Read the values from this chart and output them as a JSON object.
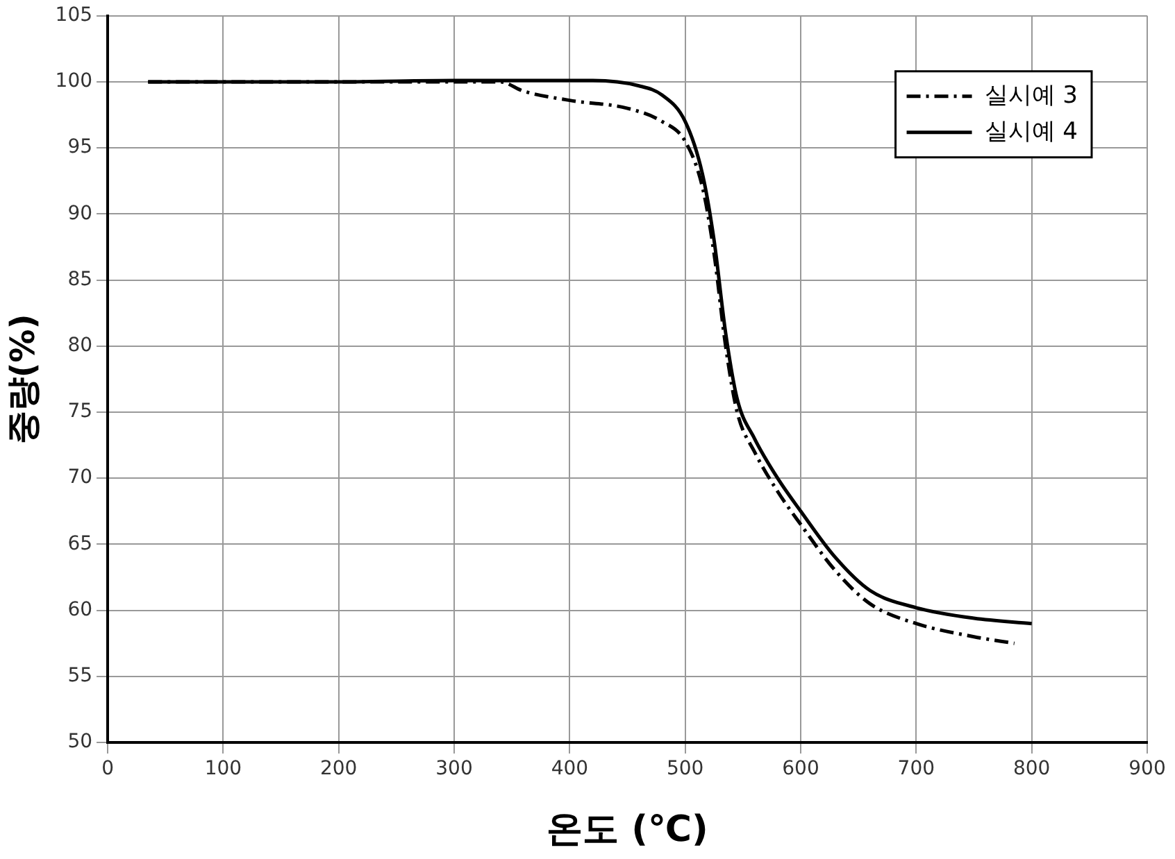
{
  "chart_data": {
    "type": "line",
    "xlabel": "온도 (℃)",
    "ylabel": "중량(%)",
    "xlim": [
      0,
      900
    ],
    "xticks": [
      0,
      100,
      200,
      300,
      400,
      500,
      600,
      700,
      800,
      900
    ],
    "ylim": [
      50,
      105
    ],
    "yticks": [
      50,
      55,
      60,
      65,
      70,
      75,
      80,
      85,
      90,
      95,
      100,
      105
    ],
    "grid": true,
    "legend": "top right",
    "marker": "none",
    "series": [
      {
        "name": "실시예 3",
        "color": "#000000",
        "line_style": "dashed",
        "x": [
          35,
          200,
          300,
          340,
          360,
          400,
          450,
          480,
          500,
          515,
          525,
          535,
          545,
          560,
          580,
          600,
          630,
          660,
          700,
          750,
          785
        ],
        "values": [
          100,
          100,
          100,
          100,
          99.3,
          98.6,
          98,
          97,
          95.5,
          92,
          87,
          80,
          75,
          72,
          69,
          66.5,
          63,
          60.5,
          59,
          58,
          57.5
        ]
      },
      {
        "name": "실시예 4",
        "color": "#000000",
        "line_style": "solid",
        "x": [
          35,
          200,
          300,
          420,
          460,
          480,
          500,
          515,
          525,
          535,
          545,
          560,
          580,
          600,
          630,
          660,
          700,
          750,
          800
        ],
        "values": [
          100,
          100,
          100.1,
          100.1,
          99.7,
          99,
          97,
          93,
          88,
          81,
          76,
          73,
          70,
          67.5,
          64,
          61.5,
          60.2,
          59.4,
          59
        ]
      }
    ]
  }
}
